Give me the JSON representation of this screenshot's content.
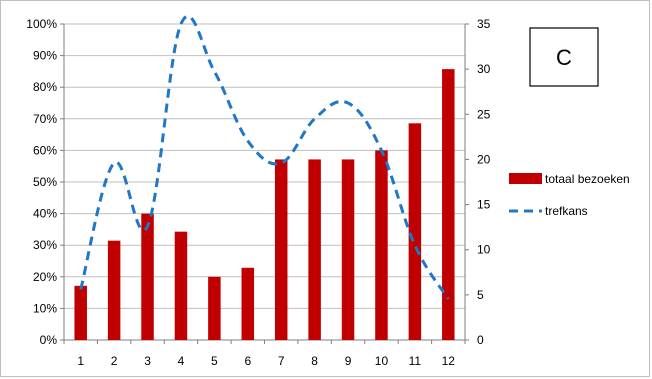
{
  "chart_data": {
    "type": "bar",
    "panel_label": "C",
    "categories": [
      "1",
      "2",
      "3",
      "4",
      "5",
      "6",
      "7",
      "8",
      "9",
      "10",
      "11",
      "12"
    ],
    "series": [
      {
        "name": "totaal bezoeken",
        "kind": "bar",
        "axis": "right",
        "color": "#c00000",
        "values": [
          6,
          11,
          14,
          12,
          7,
          8,
          20,
          20,
          20,
          21,
          24,
          30
        ]
      },
      {
        "name": "trefkans",
        "kind": "line",
        "axis": "left",
        "color": "#1f77c8",
        "dashed": true,
        "values": [
          0.16,
          0.56,
          0.36,
          1.0,
          0.85,
          0.63,
          0.56,
          0.7,
          0.75,
          0.6,
          0.3,
          0.13
        ]
      }
    ],
    "y_left": {
      "ylim": [
        0,
        1
      ],
      "ticks": [
        0,
        0.1,
        0.2,
        0.3,
        0.4,
        0.5,
        0.6,
        0.7,
        0.8,
        0.9,
        1.0
      ],
      "tick_labels": [
        "0%",
        "10%",
        "20%",
        "30%",
        "40%",
        "50%",
        "60%",
        "70%",
        "80%",
        "90%",
        "100%"
      ]
    },
    "y_right": {
      "ylim": [
        0,
        35
      ],
      "ticks": [
        0,
        5,
        10,
        15,
        20,
        25,
        30,
        35
      ],
      "tick_labels": [
        "0",
        "5",
        "10",
        "15",
        "20",
        "25",
        "30",
        "35"
      ]
    },
    "grid": true,
    "legend_position": "right"
  }
}
